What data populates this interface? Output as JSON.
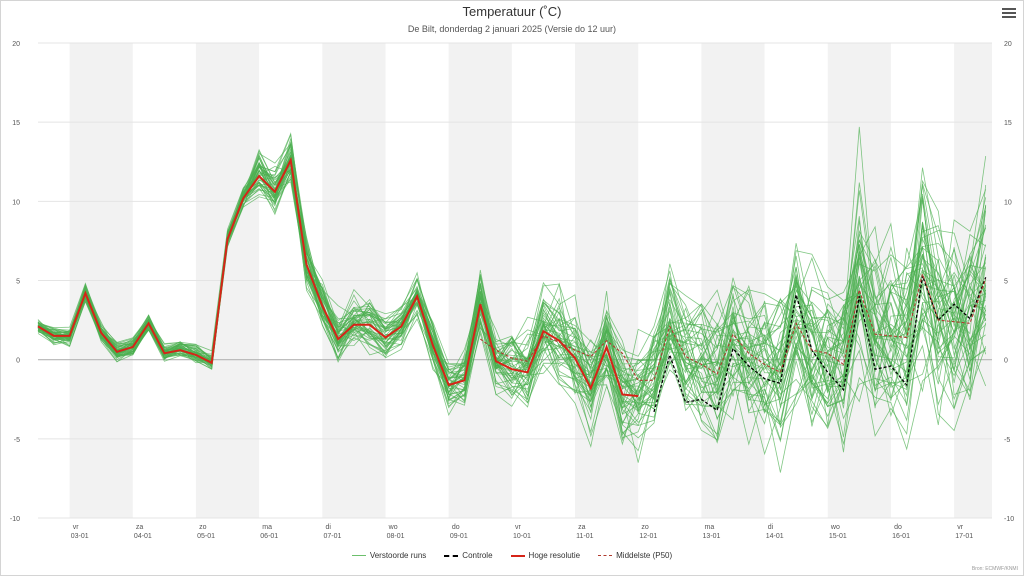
{
  "chart_data": {
    "type": "line",
    "title": "Temperatuur (˚C)",
    "subtitle": "De Bilt, donderdag 2 januari 2025 (Versie do 12 uur)",
    "ylim": [
      -10,
      20
    ],
    "yticks": [
      "20",
      "15",
      "10",
      "5",
      "0",
      "-5",
      "-10"
    ],
    "x_tick_labels": [
      {
        "day": "vr",
        "date": "03-01"
      },
      {
        "day": "za",
        "date": "04-01"
      },
      {
        "day": "zo",
        "date": "05-01"
      },
      {
        "day": "ma",
        "date": "06-01"
      },
      {
        "day": "di",
        "date": "07-01"
      },
      {
        "day": "wo",
        "date": "08-01"
      },
      {
        "day": "do",
        "date": "09-01"
      },
      {
        "day": "vr",
        "date": "10-01"
      },
      {
        "day": "za",
        "date": "11-01"
      },
      {
        "day": "zo",
        "date": "12-01"
      },
      {
        "day": "ma",
        "date": "13-01"
      },
      {
        "day": "di",
        "date": "14-01"
      },
      {
        "day": "wo",
        "date": "15-01"
      },
      {
        "day": "do",
        "date": "16-01"
      },
      {
        "day": "vr",
        "date": "17-01"
      }
    ],
    "x_start_day": 2.5,
    "x_end_day": 17.6,
    "step_days": 0.25,
    "series": [
      {
        "name": "Hoge resolutie",
        "color": "#d62418",
        "x": [
          2.5,
          2.75,
          3.0,
          3.25,
          3.5,
          3.75,
          4.0,
          4.25,
          4.5,
          4.75,
          5.0,
          5.25,
          5.5,
          5.75,
          6.0,
          6.25,
          6.5,
          6.75,
          7.0,
          7.25,
          7.5,
          7.75,
          8.0,
          8.25,
          8.5,
          8.75,
          9.0,
          9.25,
          9.5,
          9.75,
          10.0,
          10.25,
          10.5,
          10.75,
          11.0,
          11.25,
          11.5,
          11.75,
          12.0
        ],
        "y": [
          2.1,
          1.5,
          1.5,
          4.2,
          1.7,
          0.5,
          0.8,
          2.3,
          0.4,
          0.6,
          0.3,
          -0.2,
          7.6,
          10.2,
          11.6,
          10.6,
          12.6,
          6.0,
          3.4,
          1.3,
          2.2,
          2.2,
          1.4,
          2.1,
          4.0,
          0.9,
          -1.6,
          -1.3,
          3.5,
          -0.1,
          -0.6,
          -0.8,
          1.8,
          1.2,
          0.1,
          -1.8,
          0.8,
          -2.2,
          -2.3
        ]
      },
      {
        "name": "Controle",
        "color": "#000000",
        "x": [
          12.25,
          12.5,
          12.75,
          13.0,
          13.25,
          13.5,
          13.75,
          14.0,
          14.25,
          14.5,
          14.75,
          15.0,
          15.25,
          15.5,
          15.75,
          16.0,
          16.25,
          16.5,
          16.75,
          17.0,
          17.25,
          17.5
        ],
        "y": [
          -3.3,
          0.3,
          -2.7,
          -2.5,
          -3.2,
          0.7,
          -0.4,
          -1.2,
          -1.5,
          4.1,
          0.6,
          -0.8,
          -1.9,
          4.0,
          -0.6,
          -0.4,
          -1.6,
          5.3,
          2.5,
          3.5,
          2.6,
          5.2
        ]
      },
      {
        "name": "Middelste (P50)",
        "color": "#b03a2e",
        "x": [
          9.5,
          9.75,
          10.0,
          10.25,
          10.5,
          10.75,
          11.0,
          11.25,
          11.5,
          11.75,
          12.0,
          12.25,
          12.5,
          12.75,
          13.0,
          13.25,
          13.5,
          13.75,
          14.0,
          14.25,
          14.5,
          14.75,
          15.0,
          15.25,
          15.5,
          15.75,
          16.0,
          16.25,
          16.5,
          16.75,
          17.0,
          17.25,
          17.5
        ],
        "y": [
          1.3,
          0.6,
          0.1,
          -0.1,
          1.5,
          1.1,
          0.6,
          0.2,
          1.2,
          0.4,
          -1.3,
          -1.3,
          2.1,
          0.2,
          -0.3,
          -0.9,
          1.6,
          0.4,
          -0.3,
          -0.8,
          2.3,
          0.6,
          0.4,
          -0.3,
          4.4,
          1.6,
          1.5,
          1.4,
          5.4,
          2.5,
          2.4,
          2.3,
          5.1
        ]
      }
    ],
    "ensemble": {
      "name": "Verstoorde runs",
      "color": "#4caf50",
      "members": 50
    }
  },
  "legend": {
    "runs": "Verstoorde runs",
    "control": "Controle",
    "hires": "Hoge resolutie",
    "median": "Middelste (P50)"
  },
  "credits": "Bron: ECMWF/KNMI"
}
